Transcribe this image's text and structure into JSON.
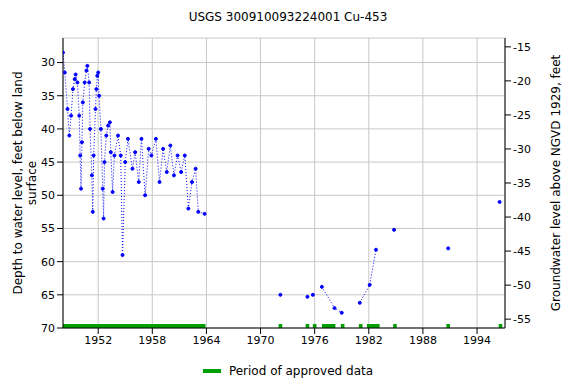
{
  "chart_data": {
    "type": "line",
    "title": "USGS 300910093224001 Cu-453",
    "y_label": [
      "Depth to water level, feet below land",
      "surface"
    ],
    "y2_label": "Groundwater level above NGVD 1929, feet",
    "x": [
      1948.1,
      1948.3,
      1948.6,
      1948.8,
      1949.0,
      1949.2,
      1949.4,
      1949.5,
      1949.7,
      1949.9,
      1950.0,
      1950.1,
      1950.2,
      1950.3,
      1950.5,
      1950.7,
      1950.8,
      1951.0,
      1951.1,
      1951.3,
      1951.4,
      1951.5,
      1951.7,
      1951.8,
      1951.9,
      1952.0,
      1952.1,
      1952.3,
      1952.5,
      1952.6,
      1952.7,
      1952.9,
      1953.1,
      1953.3,
      1953.4,
      1953.6,
      1953.8,
      1954.2,
      1954.5,
      1954.7,
      1955.0,
      1955.3,
      1955.8,
      1956.1,
      1956.5,
      1956.8,
      1957.2,
      1957.6,
      1957.9,
      1958.4,
      1958.8,
      1959.2,
      1959.6,
      1960.0,
      1960.4,
      1960.8,
      1961.2,
      1961.6,
      1962.0,
      1962.4,
      1962.8,
      1963.1,
      1963.8,
      1968.0,
      1972.2,
      1973.7,
      1975.2,
      1975.5,
      1975.8,
      1976.3,
      1976.8,
      1978.2,
      1979.0,
      1980.0,
      1981.0,
      1982.1,
      1982.8,
      1983.8,
      1984.8,
      1988.0,
      1990.8,
      1993.5,
      1996.5
    ],
    "series": [
      {
        "color": "#0000ff",
        "marker": "circle",
        "line_style": "dotted",
        "values": [
          28.5,
          31.5,
          37,
          41,
          38,
          34,
          32.5,
          31.8,
          33,
          38,
          44,
          49,
          42,
          36,
          33,
          31.2,
          30.5,
          33,
          40,
          47,
          52.5,
          44,
          37,
          34,
          32,
          31.5,
          35,
          40,
          49,
          53.5,
          45,
          41,
          39.5,
          39,
          43.5,
          49.5,
          44,
          41,
          44,
          59,
          45,
          41.5,
          46,
          43.5,
          48,
          41.5,
          50,
          43,
          44,
          41.5,
          48,
          43,
          46.5,
          42.5,
          47,
          44,
          46.5,
          44,
          52,
          48,
          46,
          52.5,
          52.8,
          null,
          65,
          null,
          65.3,
          null,
          65,
          null,
          63.8,
          67,
          67.7,
          null,
          66.2,
          63.5,
          58.2,
          null,
          55.2,
          null,
          58,
          null,
          51
        ]
      }
    ],
    "approved": {
      "name": "Period of approved data",
      "color": "#00a000",
      "line_style": "solid",
      "periods": [
        [
          1948.1,
          1963.9
        ],
        [
          1972.0,
          1972.4
        ],
        [
          1975.0,
          1975.4
        ],
        [
          1975.8,
          1976.2
        ],
        [
          1976.8,
          1978.3
        ],
        [
          1978.9,
          1979.3
        ],
        [
          1980.9,
          1981.3
        ],
        [
          1981.8,
          1983.2
        ],
        [
          1984.7,
          1985.1
        ],
        [
          1990.6,
          1991.0
        ],
        [
          1996.4,
          1996.8
        ]
      ]
    },
    "xlim": [
      1948.1,
      1997.1
    ],
    "xticks": [
      1952,
      1958,
      1964,
      1970,
      1976,
      1982,
      1988,
      1994
    ],
    "ylim": [
      26.3,
      70
    ],
    "yticks": [
      30,
      35,
      40,
      45,
      50,
      55,
      60,
      65,
      70
    ],
    "y2lim": [
      -13.7,
      -56.3
    ],
    "y2ticks": [
      -15,
      -20,
      -25,
      -30,
      -35,
      -40,
      -45,
      -50,
      -55
    ],
    "grid": true,
    "legend": "bottom"
  }
}
